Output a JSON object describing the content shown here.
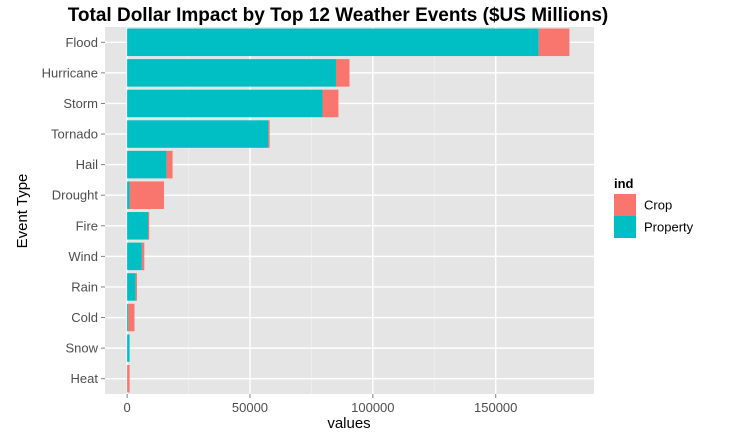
{
  "chart_data": {
    "type": "bar",
    "orientation": "horizontal",
    "stacked": true,
    "title": "Total Dollar Impact by Top 12 Weather Events ($US Millions)",
    "xlabel": "values",
    "ylabel": "Event Type",
    "xlim": [
      -9000,
      190000
    ],
    "xticks": [
      0,
      50000,
      100000,
      150000
    ],
    "xtick_labels": [
      "0",
      "50000",
      "100000",
      "150000"
    ],
    "categories": [
      "Flood",
      "Hurricane",
      "Storm",
      "Tornado",
      "Hail",
      "Drought",
      "Fire",
      "Wind",
      "Rain",
      "Cold",
      "Snow",
      "Heat"
    ],
    "series": [
      {
        "name": "Property",
        "color": "#00bfc4",
        "values": [
          167500,
          85000,
          79500,
          57500,
          16000,
          1000,
          8500,
          6000,
          3500,
          500,
          1000,
          0
        ]
      },
      {
        "name": "Crop",
        "color": "#f8766d",
        "values": [
          12500,
          5500,
          6500,
          500,
          2500,
          14000,
          500,
          1000,
          500,
          2500,
          0,
          1000
        ]
      }
    ],
    "legend": {
      "title": "ind",
      "position": "right",
      "entries": [
        {
          "label": "Crop",
          "color": "#f8766d"
        },
        {
          "label": "Property",
          "color": "#00bfc4"
        }
      ]
    },
    "grid": true,
    "panel_background": "#e5e5e5",
    "grid_color": "#ffffff"
  }
}
